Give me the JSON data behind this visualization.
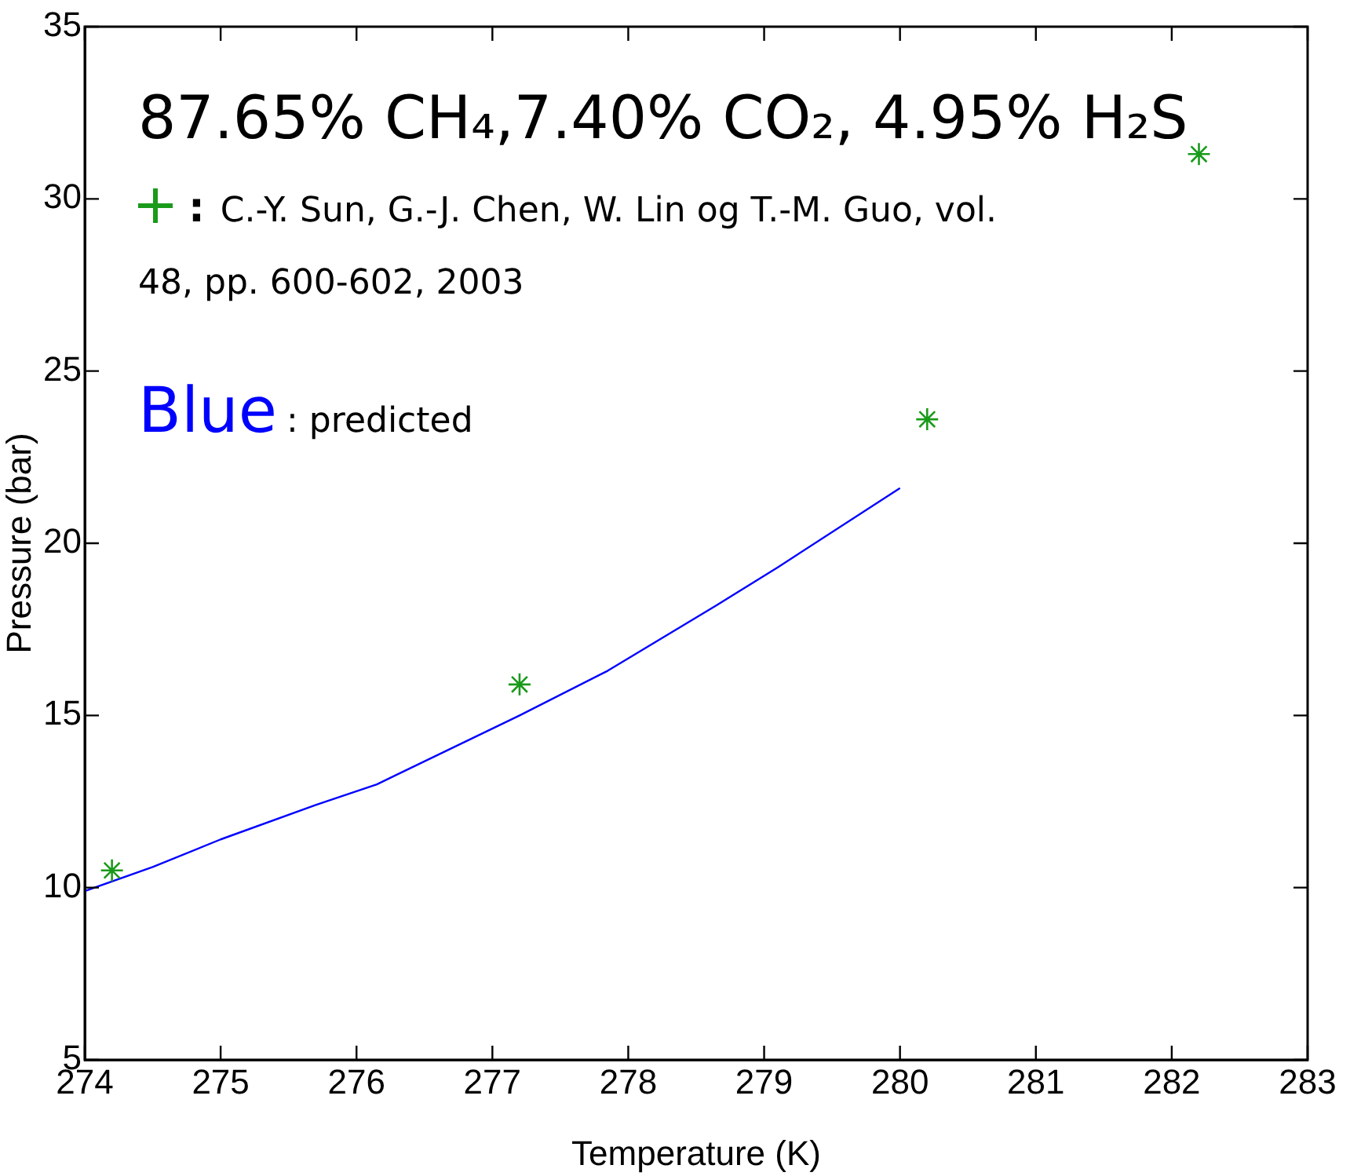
{
  "chart_data": {
    "type": "scatter",
    "xlabel": "Temperature (K)",
    "ylabel": "Pressure (bar)",
    "annotations": [
      "87.65% CH₄,7.40% CO₂, 4.95% H₂S",
      ":",
      ": predicted"
    ],
    "xlim": [
      274,
      283
    ],
    "xticks": [
      274,
      275,
      276,
      277,
      278,
      279,
      280,
      281,
      282,
      283
    ],
    "ylim": [
      5,
      35
    ],
    "yticks": [
      5,
      10,
      15,
      20,
      25,
      30,
      35
    ],
    "grid": false,
    "legend": "top left",
    "series": [
      {
        "name": "C.-Y. Sun, G.-J. Chen, W. Lin og T.-M. Guo, vol. 48, pp. 600-602, 2003",
        "marker": "cross",
        "color": "#1a9a1a",
        "x": [
          274.2,
          277.2,
          280.2,
          282.2
        ],
        "values": [
          10.5,
          15.9,
          23.6,
          31.3
        ]
      },
      {
        "name": "Blue",
        "type": "line",
        "marker": "none",
        "line_style": "solid",
        "color": "#0000ff",
        "x": [
          274,
          274.5,
          275,
          275.7,
          276.15,
          277.2,
          277.85,
          278.65,
          279.1,
          280
        ],
        "values": [
          9.9,
          10.6,
          11.4,
          12.4,
          13.0,
          15.0,
          16.3,
          18.2,
          19.3,
          21.6
        ]
      }
    ]
  }
}
